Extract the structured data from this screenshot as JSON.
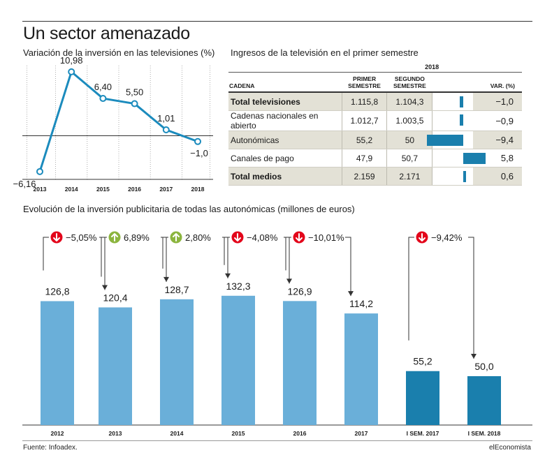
{
  "title": "Un sector amenazado",
  "line_subtitle": "Variación de la inversión en las televisiones (%)",
  "table_subtitle": "Ingresos de la televisión en el primer semestre",
  "bar_subtitle": "Evolución de la inversión publicitaria de todas las autonómicas (millones de euros)",
  "source": "Fuente: Infoadex.",
  "brand": "elEconomista",
  "colors": {
    "line": "#1b8bbd",
    "bar_light": "#6aafd9",
    "bar_dark": "#1a7fad",
    "table_bar": "#1a7fad",
    "down": "#e3061b",
    "up": "#8cb53f",
    "row_shade": "#e3e1d6"
  },
  "chart_data": [
    {
      "type": "line",
      "x": [
        "2013",
        "2014",
        "2015",
        "2016",
        "2017",
        "2018"
      ],
      "values": [
        -6.16,
        10.98,
        6.4,
        5.5,
        1.01,
        -1.0
      ],
      "labels": [
        "−6,16",
        "10,98",
        "6,40",
        "5,50",
        "1,01",
        "−1,0"
      ],
      "ylim": [
        -7.5,
        13
      ]
    },
    {
      "type": "table",
      "year_header": "2018",
      "columns": [
        "CADENA",
        "PRIMER SEMESTRE",
        "SEGUNDO SEMESTRE",
        "VAR. (%)"
      ],
      "rows": [
        {
          "name": "Total televisiones",
          "h1": "1.115,8",
          "h2": "1.104,3",
          "var": "−1,0",
          "var_value": -1.0,
          "bold": true,
          "shade": true
        },
        {
          "name": "Cadenas nacionales en abierto",
          "h1": "1.012,7",
          "h2": "1.003,5",
          "var": "−0,9",
          "var_value": -0.9,
          "bold": false,
          "shade": false
        },
        {
          "name": "Autonómicas",
          "h1": "55,2",
          "h2": "50",
          "var": "−9,4",
          "var_value": -9.4,
          "bold": false,
          "shade": true
        },
        {
          "name": "Canales de pago",
          "h1": "47,9",
          "h2": "50,7",
          "var": "5,8",
          "var_value": 5.8,
          "bold": false,
          "shade": false
        },
        {
          "name": "Total medios",
          "h1": "2.159",
          "h2": "2.171",
          "var": "0,6",
          "var_value": 0.6,
          "bold": true,
          "shade": true
        }
      ]
    },
    {
      "type": "bar",
      "categories": [
        "2012",
        "2013",
        "2014",
        "2015",
        "2016",
        "2017",
        "I SEM. 2017",
        "I SEM. 2018"
      ],
      "values": [
        126.8,
        120.4,
        128.7,
        132.3,
        126.9,
        114.2,
        55.2,
        50.0
      ],
      "value_labels": [
        "126,8",
        "120,4",
        "128,7",
        "132,3",
        "126,9",
        "114,2",
        "55,2",
        "50,0"
      ],
      "ylim": [
        0,
        140
      ],
      "changes": [
        {
          "from": 0,
          "to": 1,
          "label": "−5,05%",
          "direction": "down"
        },
        {
          "from": 1,
          "to": 2,
          "label": "6,89%",
          "direction": "up"
        },
        {
          "from": 2,
          "to": 3,
          "label": "2,80%",
          "direction": "up"
        },
        {
          "from": 3,
          "to": 4,
          "label": "−4,08%",
          "direction": "down"
        },
        {
          "from": 4,
          "to": 5,
          "label": "−10,01%",
          "direction": "down"
        },
        {
          "from": 6,
          "to": 7,
          "label": "−9,42%",
          "direction": "down"
        }
      ]
    }
  ]
}
